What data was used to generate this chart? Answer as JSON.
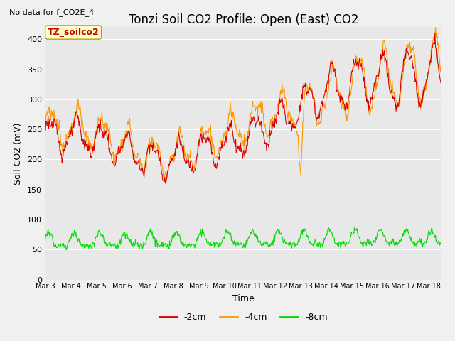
{
  "title": "Tonzi Soil CO2 Profile: Open (East) CO2",
  "subtitle": "No data for f_CO2E_4",
  "ylabel": "Soil CO2 (mV)",
  "xlabel": "Time",
  "annotation": "TZ_soilco2",
  "ylim": [
    0,
    420
  ],
  "yticks": [
    0,
    50,
    100,
    150,
    200,
    250,
    300,
    350,
    400
  ],
  "xtick_labels": [
    "Mar 3",
    "Mar 4",
    "Mar 5",
    "Mar 6",
    "Mar 7",
    "Mar 8",
    "Mar 9",
    "Mar 10",
    "Mar 11",
    "Mar 12",
    "Mar 13",
    "Mar 14",
    "Mar 15",
    "Mar 16",
    "Mar 17",
    "Mar 18"
  ],
  "legend_labels": [
    "-2cm",
    "-4cm",
    "-8cm"
  ],
  "line_colors": [
    "#dd0000",
    "#ff9900",
    "#00dd00"
  ],
  "fig_bg_color": "#f0f0f0",
  "plot_bg_color": "#e8e8e8",
  "grid_color": "#ffffff",
  "title_fontsize": 12,
  "label_fontsize": 9,
  "tick_fontsize": 8,
  "annotation_fontsize": 9,
  "subtitle_fontsize": 8,
  "n_days": 15.5,
  "n_points": 744
}
